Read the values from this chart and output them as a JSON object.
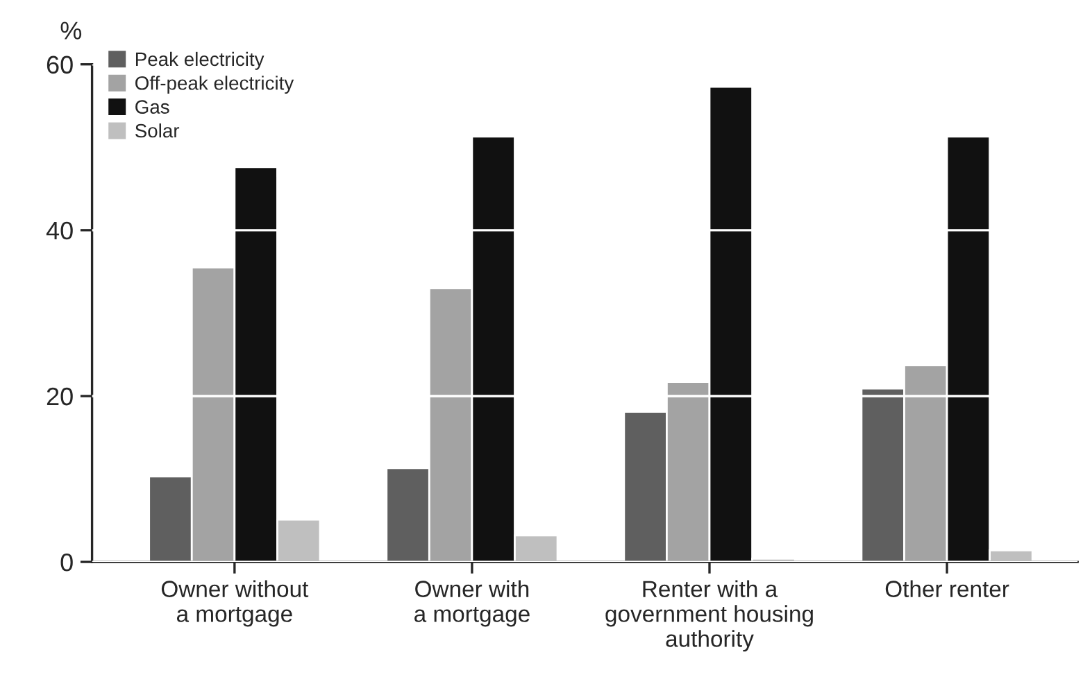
{
  "chart_data": {
    "type": "bar",
    "ylabel": "%",
    "categories": [
      "Owner without\na mortgage",
      "Owner with\na mortgage",
      "Renter with a\ngovernment housing\nauthority",
      "Other renter"
    ],
    "series": [
      {
        "name": "Peak electricity",
        "color": "#5f5f5f",
        "values": [
          10.3,
          11.3,
          18.1,
          20.9
        ]
      },
      {
        "name": "Off-peak electricity",
        "color": "#a3a3a3",
        "values": [
          35.5,
          33.0,
          21.7,
          23.7
        ]
      },
      {
        "name": "Gas",
        "color": "#111111",
        "values": [
          47.6,
          51.3,
          57.3,
          51.3
        ]
      },
      {
        "name": "Solar",
        "color": "#bfbfbf",
        "values": [
          5.1,
          3.2,
          0.4,
          1.4
        ]
      }
    ],
    "ylim": [
      0,
      60
    ],
    "yticks": [
      0,
      20,
      40,
      60
    ],
    "grid": "y",
    "legend": "top left"
  }
}
